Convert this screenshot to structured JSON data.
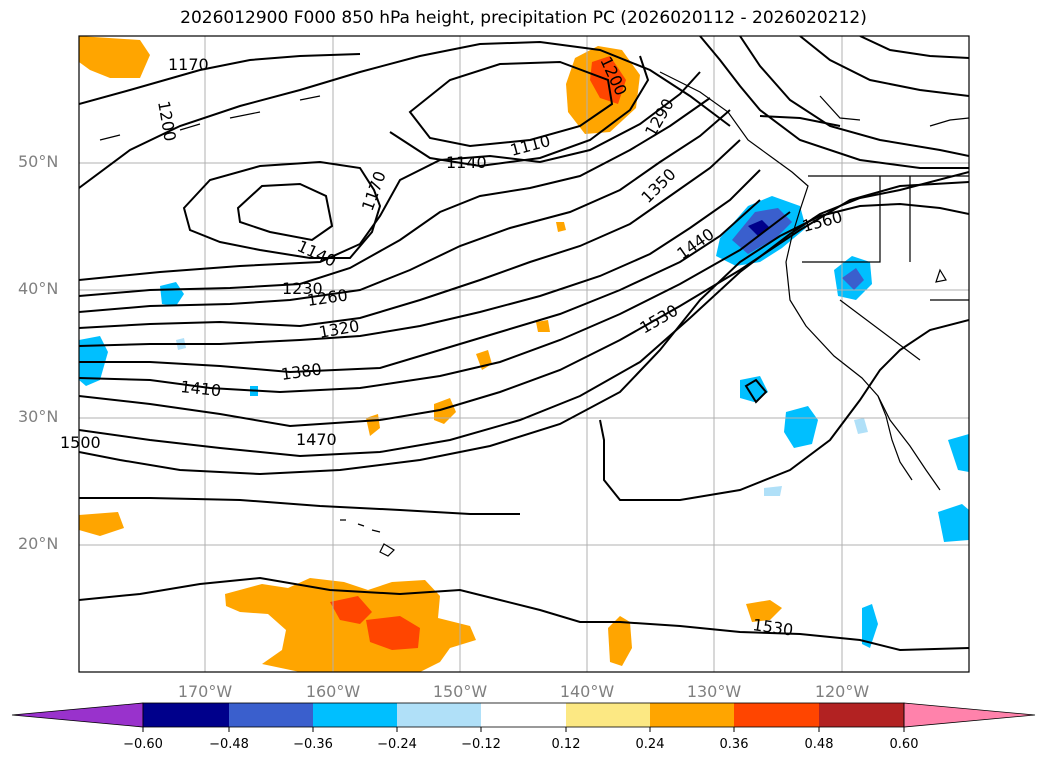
{
  "title": "2026012900 F000 850 hPa height, precipitation PC (2026020112 - 2026020212)",
  "lat_labels": [
    "50°N",
    "40°N",
    "30°N",
    "20°N"
  ],
  "lon_labels": [
    "170°W",
    "160°W",
    "150°W",
    "140°W",
    "130°W",
    "120°W"
  ],
  "contour_labels": [
    "1170",
    "1200",
    "1200",
    "1140",
    "1110",
    "1290",
    "1350",
    "1170",
    "1140",
    "1440",
    "1560",
    "1230",
    "1260",
    "1320",
    "1530",
    "1380",
    "1410",
    "1470",
    "1500",
    "1530"
  ],
  "colorbar": {
    "ticks": [
      "−0.60",
      "−0.48",
      "−0.36",
      "−0.24",
      "−0.12",
      "0.12",
      "0.24",
      "0.36",
      "0.48",
      "0.60"
    ],
    "colors": [
      "#9932cc",
      "#00008b",
      "#3a5fcd",
      "#00bfff",
      "#b0e0f8",
      "#ffffff",
      "#fce883",
      "#ffa500",
      "#ff4500",
      "#b22222",
      "#ff82ab"
    ]
  }
}
